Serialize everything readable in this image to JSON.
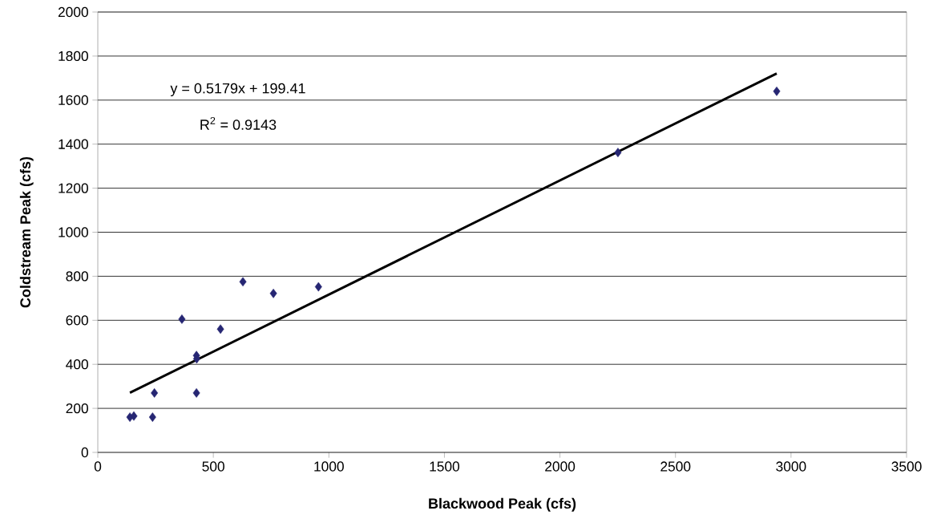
{
  "chart_data": {
    "type": "scatter",
    "xlabel": "Blackwood Peak (cfs)",
    "ylabel": "Coldstream Peak (cfs)",
    "series": [
      {
        "color": "#262673",
        "marker": "diamond",
        "x": [
          139,
          156,
          237,
          245,
          427,
          427,
          428,
          364,
          531,
          628,
          760,
          955,
          2251,
          2938
        ],
        "values": [
          160,
          165,
          160,
          270,
          270,
          440,
          425,
          605,
          560,
          775,
          722,
          752,
          1362,
          1640
        ]
      },
      {
        "type": "line",
        "color": "#000000",
        "marker": "none",
        "x": [
          139,
          2938
        ],
        "values": [
          271,
          1721
        ]
      }
    ],
    "annotations": [
      "y = 0.5179x + 199.41",
      "R$^{2}$ = 0.9143"
    ],
    "xlim": [
      0,
      3500
    ],
    "xticks": [
      0,
      500,
      1000,
      1500,
      2000,
      2500,
      3000,
      3500
    ],
    "ylim": [
      0,
      2000
    ],
    "yticks": [
      0,
      200,
      400,
      600,
      800,
      1000,
      1200,
      1400,
      1600,
      1800,
      2000
    ],
    "grid": "y"
  }
}
